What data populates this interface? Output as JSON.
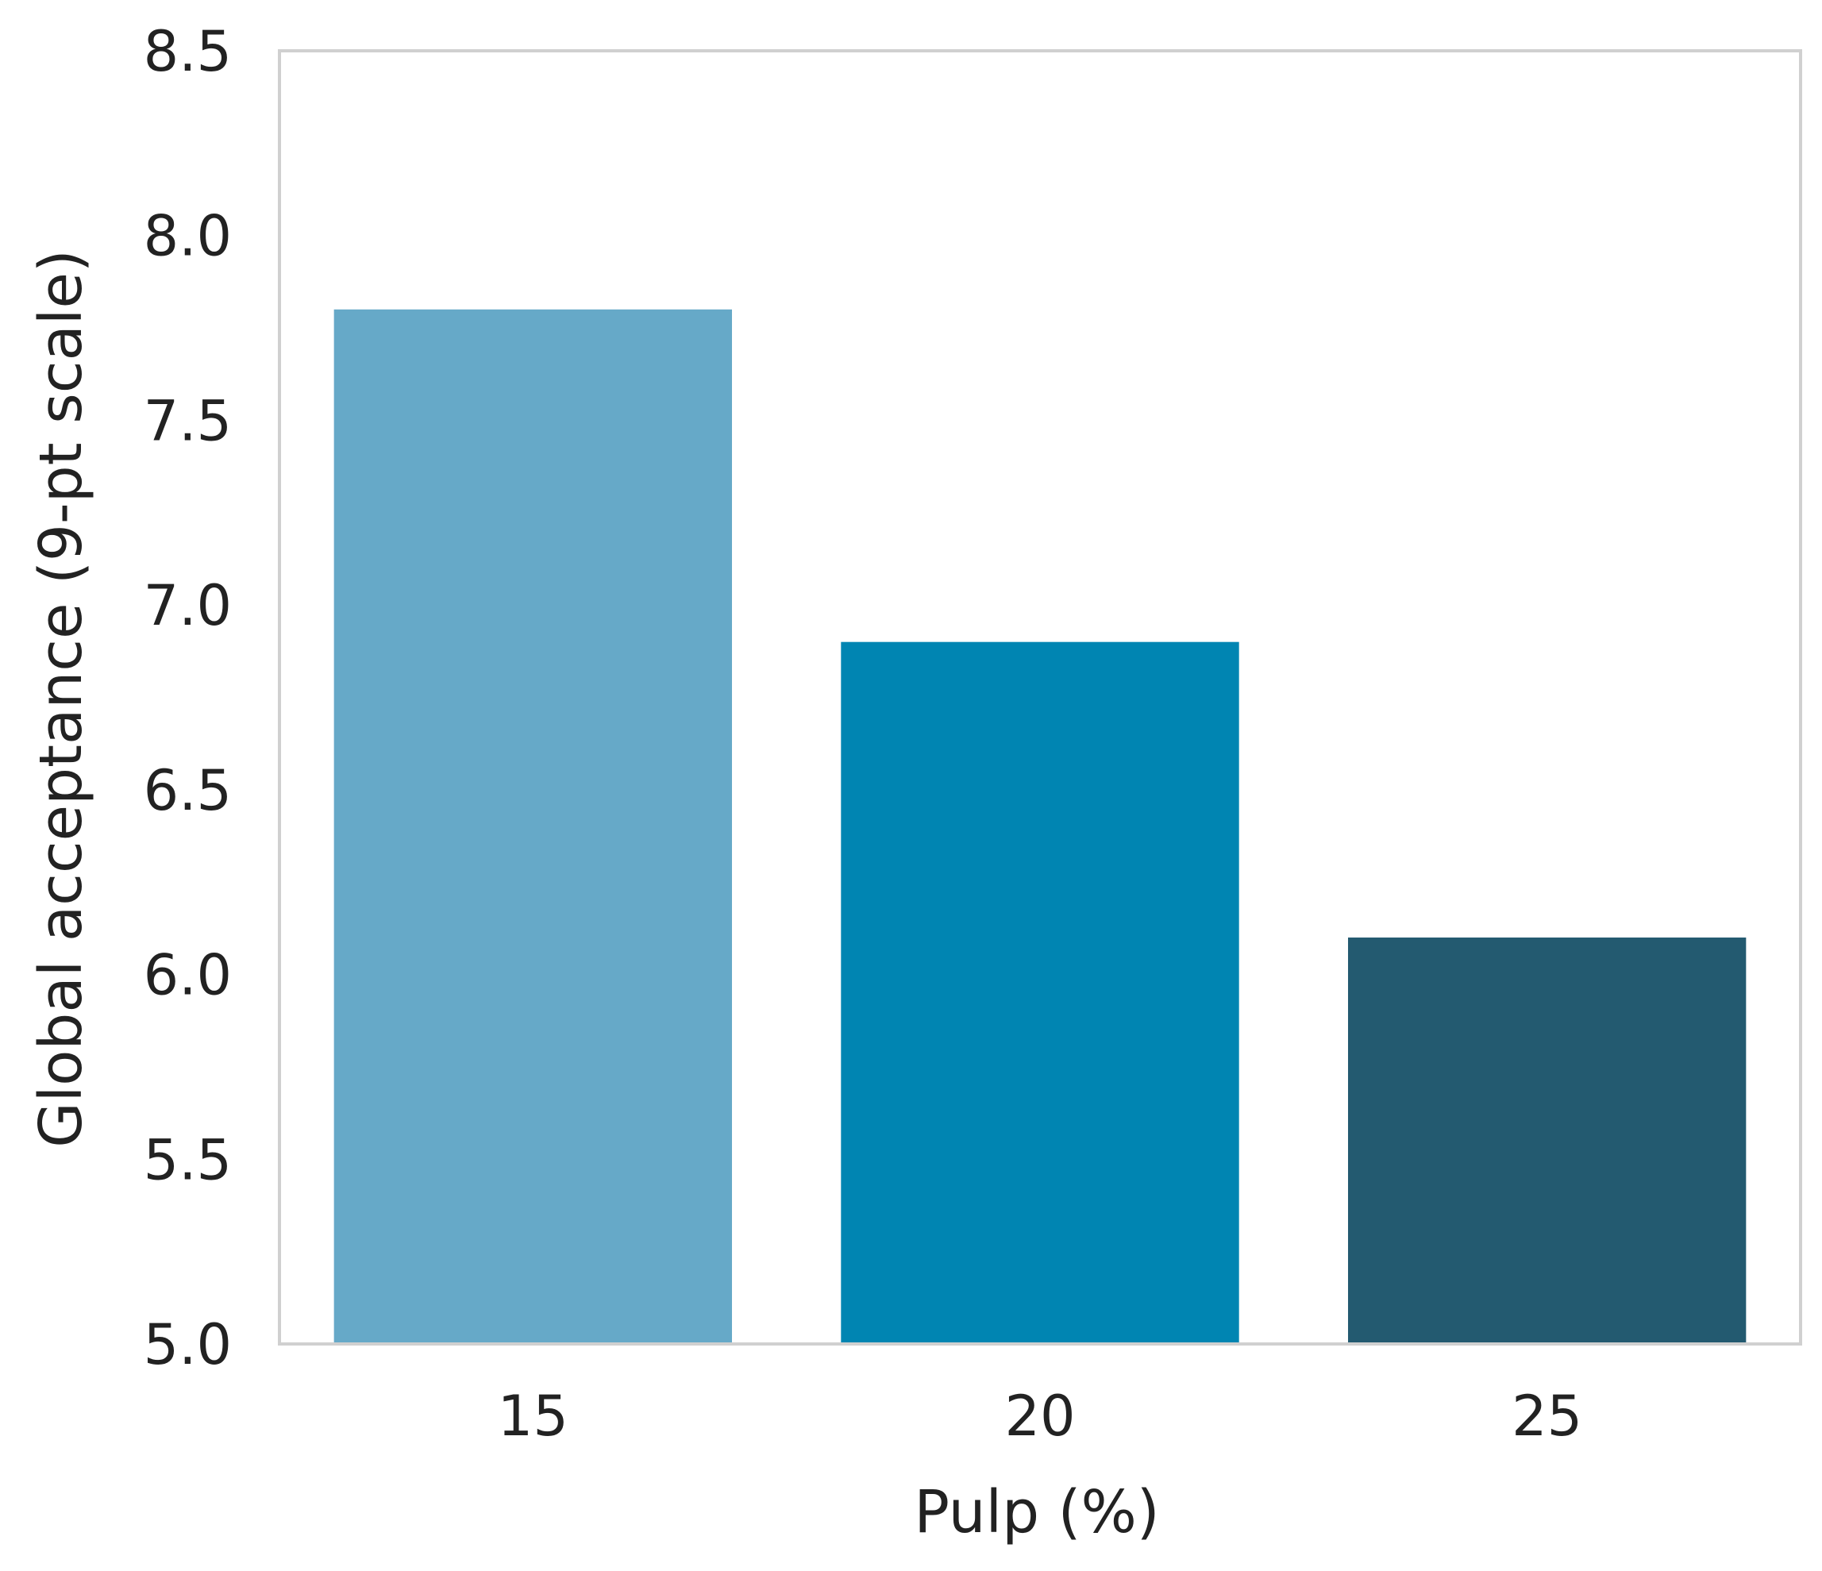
{
  "chart_data": {
    "type": "bar",
    "categories": [
      "15",
      "20",
      "25"
    ],
    "values": [
      7.8,
      6.9,
      6.1
    ],
    "colors": [
      "#66a9c8",
      "#0085b2",
      "#235a70"
    ],
    "xlabel": "Pulp (%)",
    "ylabel": "Global acceptance (9-pt scale)",
    "ylim": [
      5.0,
      8.5
    ],
    "yticks": [
      "5.0",
      "5.5",
      "6.0",
      "6.5",
      "7.0",
      "7.5",
      "8.0",
      "8.5"
    ],
    "grid": false,
    "legend": "none",
    "frame_color": "#d0d0d0"
  }
}
